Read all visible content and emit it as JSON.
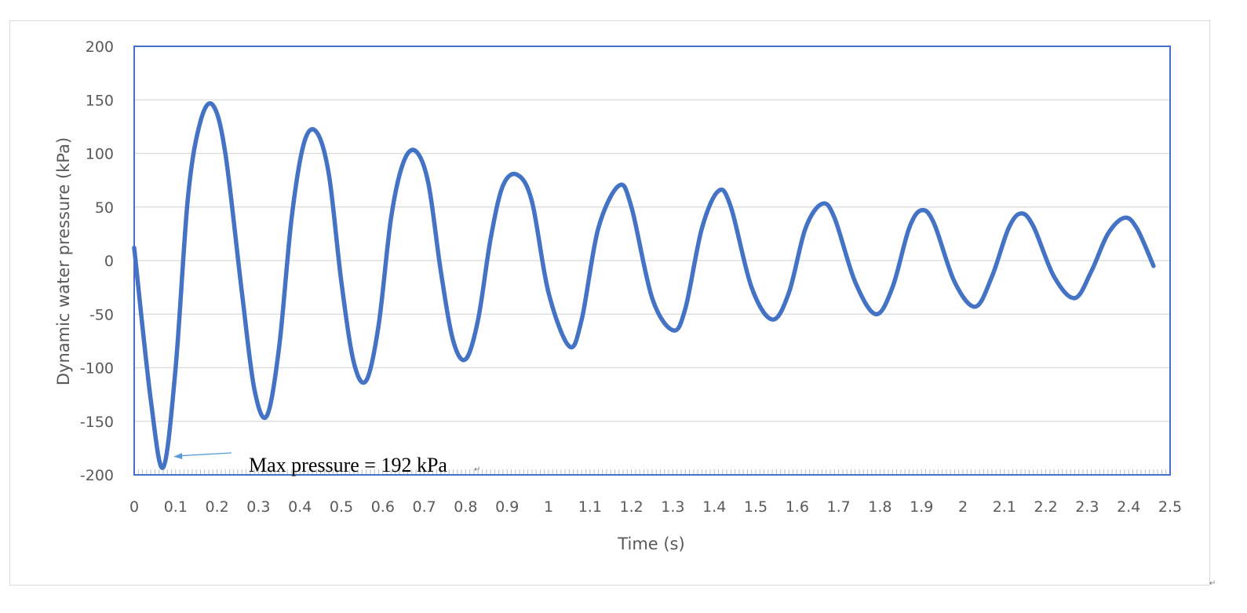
{
  "chart_data": {
    "type": "line",
    "title": "",
    "xlabel": "Time (s)",
    "ylabel": "Dynamic water  pressure (kPa)",
    "xlim": [
      0,
      2.5
    ],
    "ylim": [
      -200,
      200
    ],
    "x_ticks": [
      "0",
      "0.1",
      "0.2",
      "0.3",
      "0.4",
      "0.5",
      "0.6",
      "0.7",
      "0.8",
      "0.9",
      "1",
      "1.1",
      "1.2",
      "1.3",
      "1.4",
      "1.5",
      "1.6",
      "1.7",
      "1.8",
      "1.9",
      "2",
      "2.1",
      "2.2",
      "2.3",
      "2.4",
      "2.5"
    ],
    "y_ticks": [
      "200",
      "150",
      "100",
      "50",
      "0",
      "-50",
      "-100",
      "-150",
      "-200"
    ],
    "grid": true,
    "legend": "none",
    "series": [
      {
        "color": "#4472C4",
        "points": [
          [
            0.0,
            12
          ],
          [
            0.04,
            -130
          ],
          [
            0.07,
            -193
          ],
          [
            0.1,
            -100
          ],
          [
            0.13,
            60
          ],
          [
            0.16,
            130
          ],
          [
            0.19,
            145
          ],
          [
            0.22,
            100
          ],
          [
            0.26,
            -30
          ],
          [
            0.29,
            -120
          ],
          [
            0.32,
            -145
          ],
          [
            0.35,
            -80
          ],
          [
            0.38,
            40
          ],
          [
            0.41,
            110
          ],
          [
            0.44,
            120
          ],
          [
            0.47,
            80
          ],
          [
            0.5,
            -20
          ],
          [
            0.53,
            -95
          ],
          [
            0.56,
            -112
          ],
          [
            0.59,
            -60
          ],
          [
            0.62,
            40
          ],
          [
            0.65,
            92
          ],
          [
            0.68,
            102
          ],
          [
            0.71,
            72
          ],
          [
            0.74,
            -10
          ],
          [
            0.77,
            -75
          ],
          [
            0.8,
            -92
          ],
          [
            0.83,
            -55
          ],
          [
            0.86,
            20
          ],
          [
            0.89,
            70
          ],
          [
            0.925,
            80
          ],
          [
            0.96,
            55
          ],
          [
            1.0,
            -30
          ],
          [
            1.05,
            -80
          ],
          [
            1.08,
            -55
          ],
          [
            1.12,
            30
          ],
          [
            1.17,
            70
          ],
          [
            1.2,
            50
          ],
          [
            1.25,
            -35
          ],
          [
            1.3,
            -65
          ],
          [
            1.33,
            -45
          ],
          [
            1.37,
            30
          ],
          [
            1.41,
            65
          ],
          [
            1.44,
            50
          ],
          [
            1.49,
            -25
          ],
          [
            1.54,
            -55
          ],
          [
            1.58,
            -30
          ],
          [
            1.62,
            30
          ],
          [
            1.66,
            53
          ],
          [
            1.69,
            40
          ],
          [
            1.74,
            -20
          ],
          [
            1.79,
            -50
          ],
          [
            1.83,
            -25
          ],
          [
            1.87,
            30
          ],
          [
            1.9,
            47
          ],
          [
            1.93,
            35
          ],
          [
            1.98,
            -20
          ],
          [
            2.03,
            -43
          ],
          [
            2.07,
            -15
          ],
          [
            2.11,
            30
          ],
          [
            2.14,
            44
          ],
          [
            2.17,
            32
          ],
          [
            2.22,
            -15
          ],
          [
            2.27,
            -35
          ],
          [
            2.31,
            -10
          ],
          [
            2.35,
            25
          ],
          [
            2.39,
            40
          ],
          [
            2.42,
            30
          ],
          [
            2.46,
            -5
          ]
        ]
      }
    ],
    "annotation": {
      "text": "Max pressure = 192 kPa",
      "arrow_to": [
        0.095,
        -183
      ]
    }
  }
}
